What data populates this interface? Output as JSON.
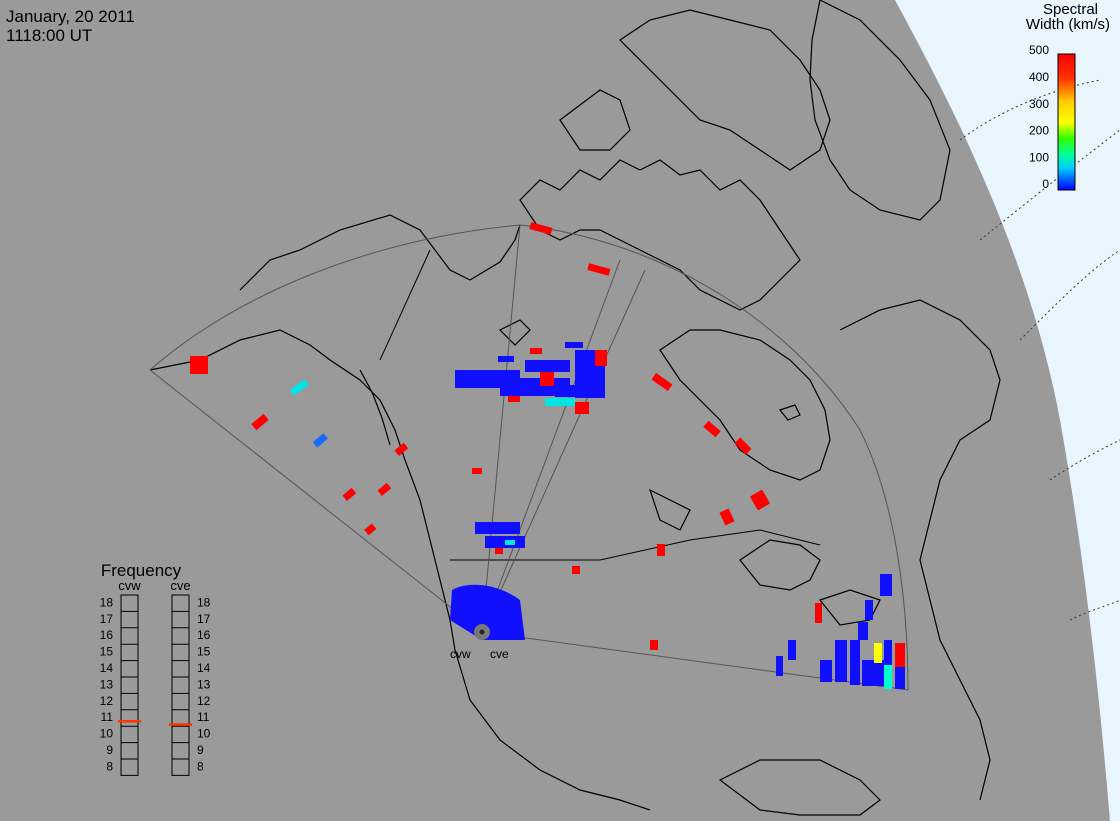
{
  "header": {
    "date": "January, 20 2011",
    "time": "1118:00 UT"
  },
  "colorbar": {
    "title_line1": "Spectral",
    "title_line2": "Width (km/s)",
    "ticks": [
      "500",
      "400",
      "300",
      "200",
      "100",
      "0"
    ],
    "colors": [
      "#ff0000",
      "#ff8000",
      "#ffff00",
      "#00ff00",
      "#00ffcc",
      "#0000ff"
    ]
  },
  "frequency": {
    "title": "Frequency",
    "radars": [
      {
        "name": "cvw",
        "value_mhz": 10.8
      },
      {
        "name": "cve",
        "value_mhz": 10.6
      }
    ],
    "scale": [
      "18",
      "17",
      "16",
      "15",
      "14",
      "13",
      "12",
      "11",
      "10",
      "9",
      "8"
    ],
    "indicator_color": "#ff3300"
  },
  "radar_sites": {
    "west_label": "cvw",
    "east_label": "cve"
  },
  "colors": {
    "land": "#9a9a9a",
    "space": "#eaf6ff",
    "fov_outline": "#555555",
    "coast": "#000000",
    "scatter_low": "#1010ff",
    "scatter_high": "#ff0000",
    "scatter_mid": "#00e5e5"
  }
}
